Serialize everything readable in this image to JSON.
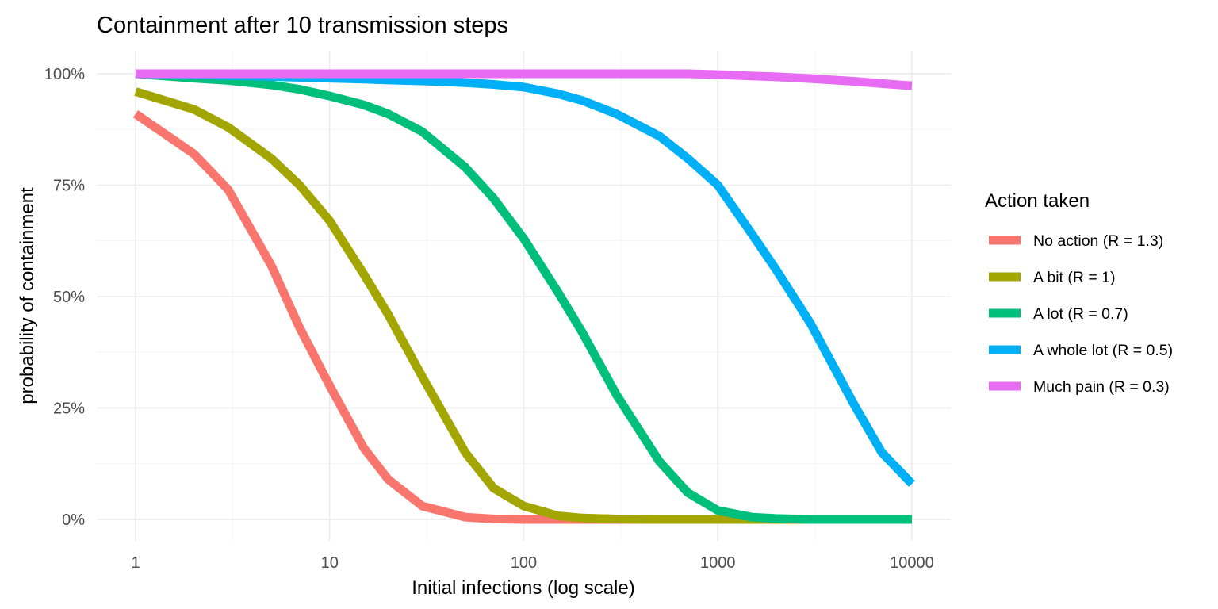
{
  "chart_data": {
    "type": "line",
    "title": "Containment after 10 transmission steps",
    "xlabel": "Initial infections (log scale)",
    "ylabel": "probability of containment",
    "x_scale": "log10",
    "xlim": [
      1,
      10000
    ],
    "ylim": [
      0,
      1
    ],
    "x_ticks": [
      1,
      10,
      100,
      1000,
      10000
    ],
    "x_tick_labels": [
      "1",
      "10",
      "100",
      "1000",
      "10000"
    ],
    "y_ticks": [
      0,
      0.25,
      0.5,
      0.75,
      1
    ],
    "y_tick_labels": [
      "0%",
      "25%",
      "50%",
      "75%",
      "100%"
    ],
    "grid": true,
    "legend": {
      "title": "Action taken",
      "position": "right"
    },
    "x": [
      1,
      2,
      3,
      5,
      7,
      10,
      15,
      20,
      30,
      50,
      70,
      100,
      150,
      200,
      300,
      500,
      700,
      1000,
      1500,
      2000,
      3000,
      5000,
      7000,
      10000
    ],
    "series": [
      {
        "name": "No action (R = 1.3)",
        "color": "#F8766D",
        "values": [
          0.91,
          0.82,
          0.74,
          0.57,
          0.43,
          0.3,
          0.16,
          0.09,
          0.03,
          0.005,
          0.001,
          0,
          0,
          0,
          0,
          0,
          0,
          0,
          0,
          0,
          0,
          0,
          0,
          0
        ]
      },
      {
        "name": "A bit (R = 1)",
        "color": "#A3A500",
        "values": [
          0.96,
          0.92,
          0.88,
          0.81,
          0.75,
          0.67,
          0.55,
          0.46,
          0.32,
          0.15,
          0.07,
          0.03,
          0.008,
          0.003,
          0.001,
          0,
          0,
          0,
          0,
          0,
          0,
          0,
          0,
          0
        ]
      },
      {
        "name": "A lot (R = 0.7)",
        "color": "#00BF7D",
        "values": [
          1.0,
          0.99,
          0.985,
          0.975,
          0.965,
          0.95,
          0.93,
          0.91,
          0.87,
          0.79,
          0.72,
          0.63,
          0.51,
          0.42,
          0.28,
          0.13,
          0.06,
          0.02,
          0.005,
          0.002,
          0,
          0,
          0,
          0
        ]
      },
      {
        "name": "A whole lot (R = 0.5)",
        "color": "#00B0F6",
        "values": [
          1.0,
          0.998,
          0.996,
          0.994,
          0.992,
          0.99,
          0.988,
          0.986,
          0.984,
          0.98,
          0.976,
          0.97,
          0.955,
          0.94,
          0.91,
          0.86,
          0.81,
          0.75,
          0.64,
          0.56,
          0.44,
          0.26,
          0.15,
          0.08
        ]
      },
      {
        "name": "Much pain (R = 0.3)",
        "color": "#E76BF3",
        "values": [
          1.0,
          1.0,
          1.0,
          1.0,
          1.0,
          1.0,
          1.0,
          1.0,
          1.0,
          1.0,
          1.0,
          1.0,
          1.0,
          1.0,
          1.0,
          1.0,
          1.0,
          0.998,
          0.995,
          0.993,
          0.989,
          0.983,
          0.978,
          0.973
        ]
      }
    ]
  }
}
